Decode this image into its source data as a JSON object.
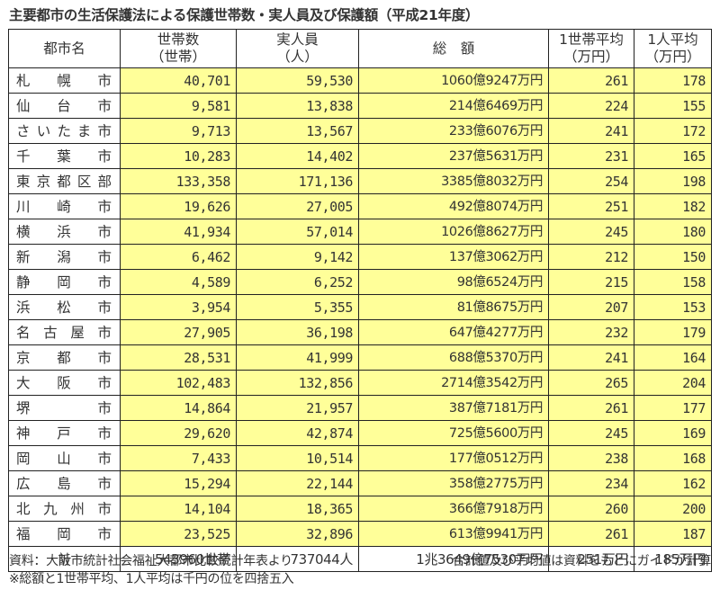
{
  "title": "主要都市の生活保護法による保護世帯数・実人員及び保護額（平成21年度）",
  "headers": {
    "city": "都市名",
    "households_l1": "世帯数",
    "households_l2": "（世帯）",
    "persons_l1": "実人員",
    "persons_l2": "（人）",
    "total": "総　額",
    "per_household_l1": "1世帯平均",
    "per_household_l2": "（万円）",
    "per_person_l1": "1人平均",
    "per_person_l2": "（万円）"
  },
  "rows": [
    {
      "city": "札幌市",
      "households": "40,701",
      "persons": "59,530",
      "amount": "1060億9247万円",
      "per_household": "261",
      "per_person": "178"
    },
    {
      "city": "仙台市",
      "households": "9,581",
      "persons": "13,838",
      "amount": "214億6469万円",
      "per_household": "224",
      "per_person": "155"
    },
    {
      "city": "さいたま市",
      "households": "9,713",
      "persons": "13,567",
      "amount": "233億6076万円",
      "per_household": "241",
      "per_person": "172"
    },
    {
      "city": "千葉市",
      "households": "10,283",
      "persons": "14,402",
      "amount": "237億5631万円",
      "per_household": "231",
      "per_person": "165"
    },
    {
      "city": "東京都区部",
      "households": "133,358",
      "persons": "171,136",
      "amount": "3385億8032万円",
      "per_household": "254",
      "per_person": "198"
    },
    {
      "city": "川崎市",
      "households": "19,626",
      "persons": "27,005",
      "amount": "492億8074万円",
      "per_household": "251",
      "per_person": "182"
    },
    {
      "city": "横浜市",
      "households": "41,934",
      "persons": "57,014",
      "amount": "1026億8627万円",
      "per_household": "245",
      "per_person": "180"
    },
    {
      "city": "新潟市",
      "households": "6,462",
      "persons": "9,142",
      "amount": "137億3062万円",
      "per_household": "212",
      "per_person": "150"
    },
    {
      "city": "静岡市",
      "households": "4,589",
      "persons": "6,252",
      "amount": "98億6524万円",
      "per_household": "215",
      "per_person": "158"
    },
    {
      "city": "浜松市",
      "households": "3,954",
      "persons": "5,355",
      "amount": "81億8675万円",
      "per_household": "207",
      "per_person": "153"
    },
    {
      "city": "名古屋市",
      "households": "27,905",
      "persons": "36,198",
      "amount": "647億4277万円",
      "per_household": "232",
      "per_person": "179"
    },
    {
      "city": "京都市",
      "households": "28,531",
      "persons": "41,999",
      "amount": "688億5370万円",
      "per_household": "241",
      "per_person": "164"
    },
    {
      "city": "大阪市",
      "households": "102,483",
      "persons": "132,856",
      "amount": "2714億3542万円",
      "per_household": "265",
      "per_person": "204"
    },
    {
      "city": "堺市",
      "households": "14,864",
      "persons": "21,957",
      "amount": "387億7181万円",
      "per_household": "261",
      "per_person": "177"
    },
    {
      "city": "神戸市",
      "households": "29,620",
      "persons": "42,874",
      "amount": "725億5600万円",
      "per_household": "245",
      "per_person": "169"
    },
    {
      "city": "岡山市",
      "households": "7,433",
      "persons": "10,514",
      "amount": "177億0512万円",
      "per_household": "238",
      "per_person": "168"
    },
    {
      "city": "広島市",
      "households": "15,294",
      "persons": "22,144",
      "amount": "358億2775万円",
      "per_household": "234",
      "per_person": "162"
    },
    {
      "city": "北九州市",
      "households": "14,104",
      "persons": "18,365",
      "amount": "366億7918万円",
      "per_household": "260",
      "per_person": "200"
    },
    {
      "city": "福岡市",
      "households": "23,525",
      "persons": "32,896",
      "amount": "613億9941万円",
      "per_household": "261",
      "per_person": "187"
    }
  ],
  "total": {
    "label": "計",
    "households": "543960世帯",
    "persons": "737044人",
    "amount": "1兆3649億7530万円",
    "per_household": "251万円",
    "per_person": "185万円"
  },
  "notes": {
    "source": "資料：大阪市統計社会福祉大都市比較統計年表より",
    "calc": "合計値及び平均値は資料をもとにガイドが計算",
    "rounding": "※総額と1世帯平均、1人平均は千円の位を四捨五入"
  },
  "colors": {
    "data_fill": "#ffff99",
    "border": "#222222",
    "text": "#333333"
  }
}
